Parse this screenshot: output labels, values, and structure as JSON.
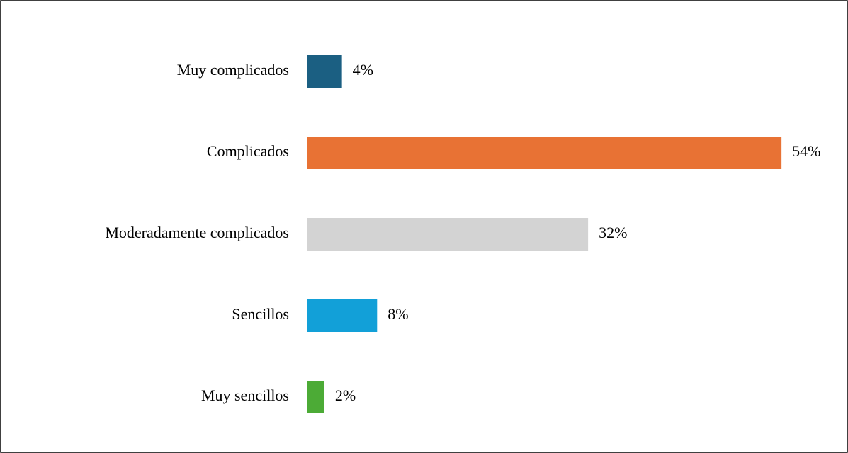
{
  "chart_data": {
    "type": "bar",
    "orientation": "horizontal",
    "categories": [
      "Muy complicados",
      "Complicados",
      "Moderadamente complicados",
      "Sencillos",
      "Muy sencillos"
    ],
    "values": [
      4,
      54,
      32,
      8,
      2
    ],
    "value_labels": [
      "4%",
      "54%",
      "32%",
      "8%",
      "2%"
    ],
    "colors": [
      "#1b5f82",
      "#e87234",
      "#d3d3d3",
      "#12a0d8",
      "#4cab36"
    ]
  }
}
